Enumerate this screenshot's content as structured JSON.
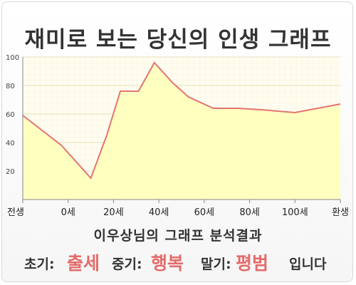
{
  "title": "재미로 보는 당신의 인생 그래프",
  "subtitle": "이우상님의 그래프 분석결과",
  "result": {
    "early_label": "초기:",
    "early_value": "출세",
    "mid_label": "중기:",
    "mid_value": "행복",
    "late_label": "말기:",
    "late_value": "평범",
    "ending": "입니다"
  },
  "colors": {
    "plot_background": "#fffdf0",
    "area_fill": "#ffffc0",
    "line": "#e57373",
    "highlight_text": "#e46b6b",
    "text": "#333333"
  },
  "chart_data": {
    "type": "area",
    "x_labels": [
      "전생",
      "0세",
      "20세",
      "40세",
      "60세",
      "80세",
      "100세",
      "환생"
    ],
    "x": [
      -20,
      -3,
      10,
      17,
      23,
      31,
      38,
      46,
      53,
      64,
      75,
      85,
      100,
      120
    ],
    "values": [
      59,
      38,
      15,
      45,
      76,
      76,
      96,
      82,
      72,
      64,
      64,
      63,
      61,
      67
    ],
    "ylim": [
      0,
      100
    ],
    "xlim": [
      -20,
      120
    ],
    "yticks": [
      20,
      40,
      60,
      80,
      100
    ],
    "grid": true
  }
}
